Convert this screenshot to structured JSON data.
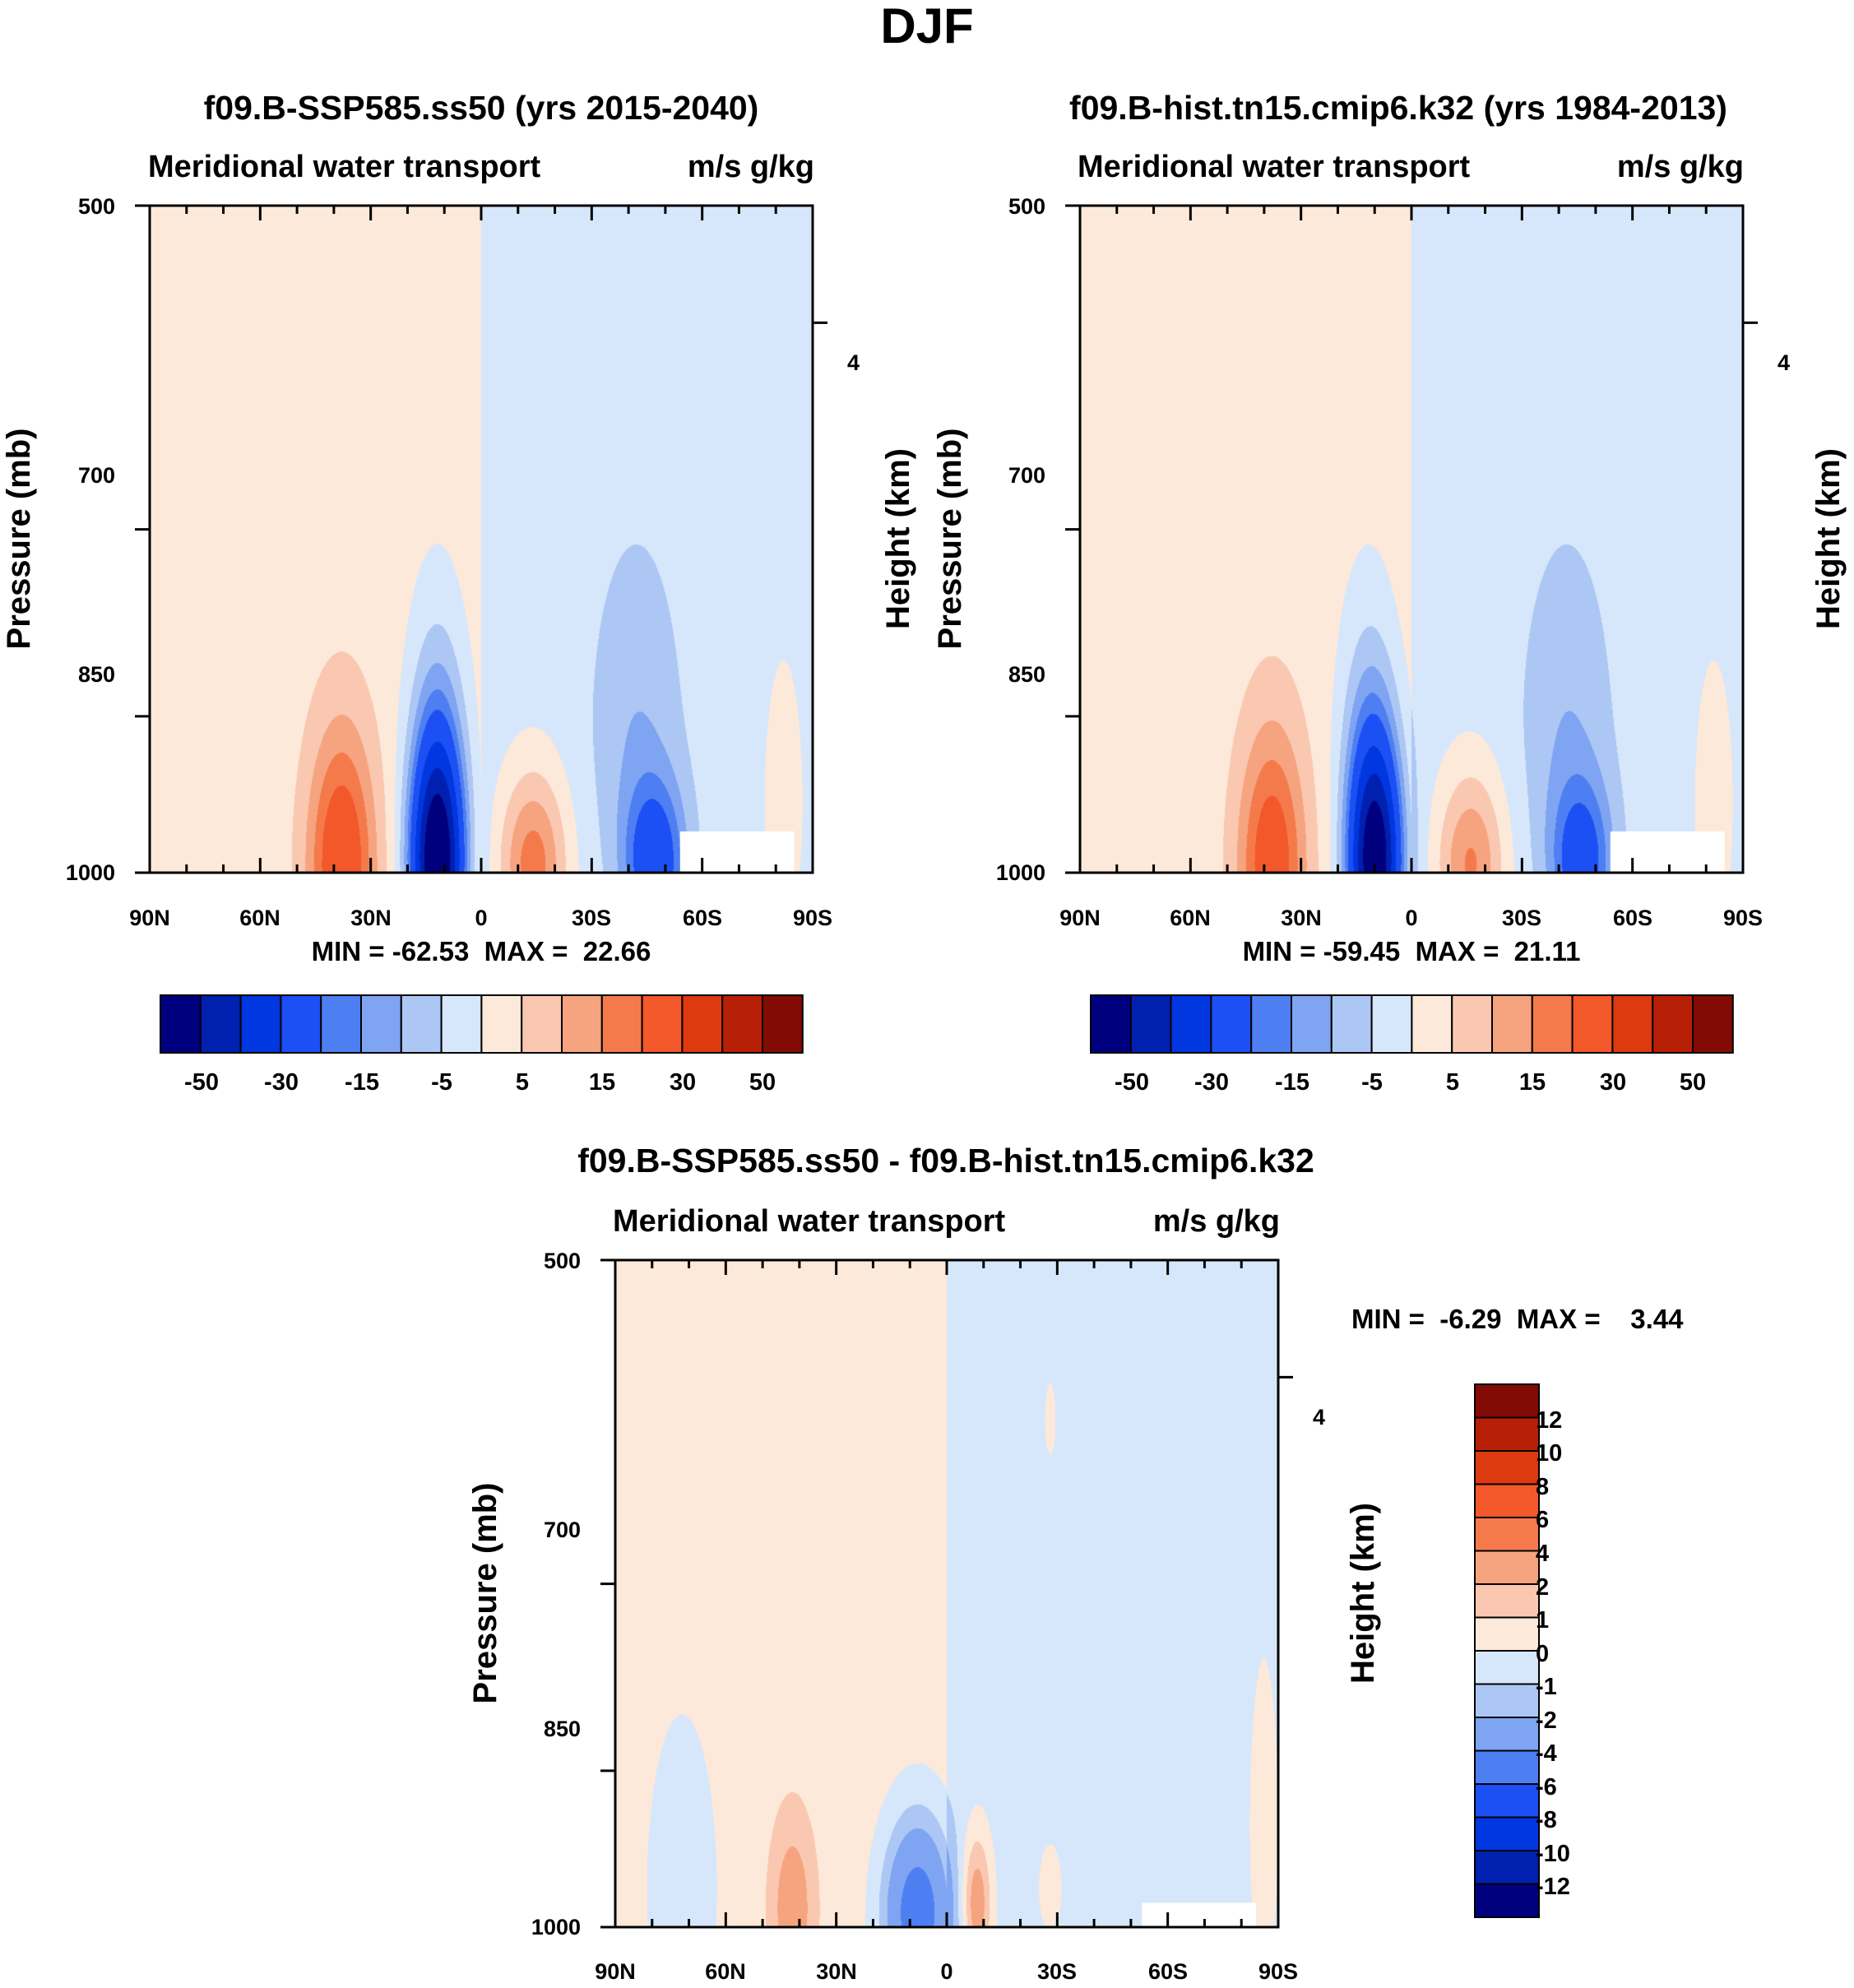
{
  "figure_title": "DJF",
  "palette": {
    "neg": [
      "#00007f",
      "#0020b0",
      "#0037e0",
      "#1c4ff4",
      "#4d7ff2",
      "#7fa4f2",
      "#adc7f5",
      "#d7e7fb"
    ],
    "pos": [
      "#fde9d9",
      "#fac8b0",
      "#f6a37f",
      "#f47a4b",
      "#f2582a",
      "#dd3a10",
      "#b71f06",
      "#830b05"
    ]
  },
  "chart_data": [
    {
      "id": "ssp585",
      "type": "heatmap",
      "title": "f09.B-SSP585.ss50 (yrs 2015-2040)",
      "left_label": "Meridional water transport",
      "right_label": "m/s g/kg",
      "xlabel": "",
      "ylabel": "Pressure (mb)",
      "ylabel_right": "Height (km)",
      "xlim": [
        90,
        -90
      ],
      "ylim": [
        1000,
        500
      ],
      "x_ticks": [
        90,
        60,
        30,
        0,
        -30,
        -60,
        -90
      ],
      "x_tick_labels": [
        "90N",
        "60N",
        "30N",
        "0",
        "30S",
        "60S",
        "90S"
      ],
      "y_ticks": [
        500,
        700,
        850,
        1000
      ],
      "y_tick_labels": [
        "500",
        "700",
        "850",
        "1000"
      ],
      "right_ticks": [
        4
      ],
      "right_tick_labels": [
        "4"
      ],
      "stats": "MIN = -62.53  MAX =  22.66",
      "levels": [
        -60,
        -50,
        -40,
        -30,
        -20,
        -15,
        -10,
        -5,
        0,
        5,
        10,
        15,
        20,
        30,
        40,
        50,
        60
      ],
      "colorbar_labels": [
        "-50",
        "-30",
        "-15",
        "-5",
        "5",
        "15",
        "30",
        "50"
      ],
      "features": [
        {
          "lat": 38,
          "p": 990,
          "amp": 25,
          "wlat": 9,
          "wp": 130
        },
        {
          "lat": -14,
          "p": 990,
          "amp": 20,
          "wlat": 9,
          "wp": 90
        },
        {
          "lat": 12,
          "p": 990,
          "amp": -64,
          "wlat": 7,
          "wp": 120
        },
        {
          "lat": 12,
          "p": 860,
          "amp": -8,
          "wlat": 8,
          "wp": 130
        },
        {
          "lat": -47,
          "p": 990,
          "amp": -24,
          "wlat": 8,
          "wp": 80
        },
        {
          "lat": -42,
          "p": 860,
          "amp": -7,
          "wlat": 12,
          "wp": 150
        },
        {
          "lat": -82,
          "p": 930,
          "amp": 5,
          "wlat": 6,
          "wp": 150
        }
      ],
      "missing": {
        "lat_from": -54,
        "lat_to": -85,
        "p_from": 958,
        "p_to": 1000
      }
    },
    {
      "id": "hist",
      "type": "heatmap",
      "title": "f09.B-hist.tn15.cmip6.k32 (yrs 1984-2013)",
      "left_label": "Meridional water transport",
      "right_label": "m/s g/kg",
      "xlabel": "",
      "ylabel": "Pressure (mb)",
      "ylabel_right": "Height (km)",
      "xlim": [
        90,
        -90
      ],
      "ylim": [
        1000,
        500
      ],
      "x_ticks": [
        90,
        60,
        30,
        0,
        -30,
        -60,
        -90
      ],
      "x_tick_labels": [
        "90N",
        "60N",
        "30N",
        "0",
        "30S",
        "60S",
        "90S"
      ],
      "y_ticks": [
        500,
        700,
        850,
        1000
      ],
      "y_tick_labels": [
        "500",
        "700",
        "850",
        "1000"
      ],
      "right_ticks": [
        4
      ],
      "right_tick_labels": [
        "4"
      ],
      "stats": "MIN = -59.45  MAX =  21.11",
      "levels": [
        -60,
        -50,
        -40,
        -30,
        -20,
        -15,
        -10,
        -5,
        0,
        5,
        10,
        15,
        20,
        30,
        40,
        50,
        60
      ],
      "colorbar_labels": [
        "-50",
        "-30",
        "-15",
        "-5",
        "5",
        "15",
        "30",
        "50"
      ],
      "features": [
        {
          "lat": 38,
          "p": 990,
          "amp": 23,
          "wlat": 9,
          "wp": 130
        },
        {
          "lat": -16,
          "p": 990,
          "amp": 18,
          "wlat": 9,
          "wp": 90
        },
        {
          "lat": 10,
          "p": 990,
          "amp": -61,
          "wlat": 7,
          "wp": 120
        },
        {
          "lat": 12,
          "p": 860,
          "amp": -8,
          "wlat": 8,
          "wp": 130
        },
        {
          "lat": -46,
          "p": 990,
          "amp": -22,
          "wlat": 8,
          "wp": 80
        },
        {
          "lat": -42,
          "p": 860,
          "amp": -7,
          "wlat": 12,
          "wp": 150
        },
        {
          "lat": -82,
          "p": 930,
          "amp": 5,
          "wlat": 6,
          "wp": 150
        }
      ],
      "missing": {
        "lat_from": -54,
        "lat_to": -85,
        "p_from": 958,
        "p_to": 1000
      }
    },
    {
      "id": "diff",
      "type": "heatmap",
      "title": "f09.B-SSP585.ss50 - f09.B-hist.tn15.cmip6.k32",
      "left_label": "Meridional water transport",
      "right_label": "m/s g/kg",
      "xlabel": "",
      "ylabel": "Pressure (mb)",
      "ylabel_right": "Height (km)",
      "xlim": [
        90,
        -90
      ],
      "ylim": [
        1000,
        500
      ],
      "x_ticks": [
        90,
        60,
        30,
        0,
        -30,
        -60,
        -90
      ],
      "x_tick_labels": [
        "90N",
        "60N",
        "30N",
        "0",
        "30S",
        "60S",
        "90S"
      ],
      "y_ticks": [
        500,
        700,
        850,
        1000
      ],
      "y_tick_labels": [
        "500",
        "700",
        "850",
        "1000"
      ],
      "right_ticks": [
        4
      ],
      "right_tick_labels": [
        "4"
      ],
      "stats": "MIN =  -6.29  MAX =    3.44",
      "levels": [
        -14,
        -12,
        -10,
        -8,
        -6,
        -4,
        -2,
        -1,
        0,
        1,
        2,
        4,
        6,
        8,
        10,
        12,
        14
      ],
      "colorbar_labels": [
        "12",
        "10",
        "8",
        "6",
        "4",
        "2",
        "1",
        "0",
        "-1",
        "-2",
        "-4",
        "-6",
        "-8",
        "-10",
        "-12"
      ],
      "features": [
        {
          "lat": 42,
          "p": 980,
          "amp": 2.4,
          "wlat": 6,
          "wp": 90
        },
        {
          "lat": -8,
          "p": 975,
          "amp": 3.4,
          "wlat": 4,
          "wp": 70
        },
        {
          "lat": 8,
          "p": 985,
          "amp": -5.8,
          "wlat": 9,
          "wp": 90
        },
        {
          "lat": 72,
          "p": 960,
          "amp": -0.9,
          "wlat": 12,
          "wp": 200
        },
        {
          "lat": -28,
          "p": 960,
          "amp": 0.7,
          "wlat": 5,
          "wp": 70
        },
        {
          "lat": -86,
          "p": 900,
          "amp": 1.2,
          "wlat": 4,
          "wp": 150
        },
        {
          "lat": -28,
          "p": 590,
          "amp": 0.8,
          "wlat": 2,
          "wp": 30
        }
      ],
      "missing": {
        "lat_from": -53,
        "lat_to": -84,
        "p_from": 975,
        "p_to": 1000
      }
    }
  ]
}
